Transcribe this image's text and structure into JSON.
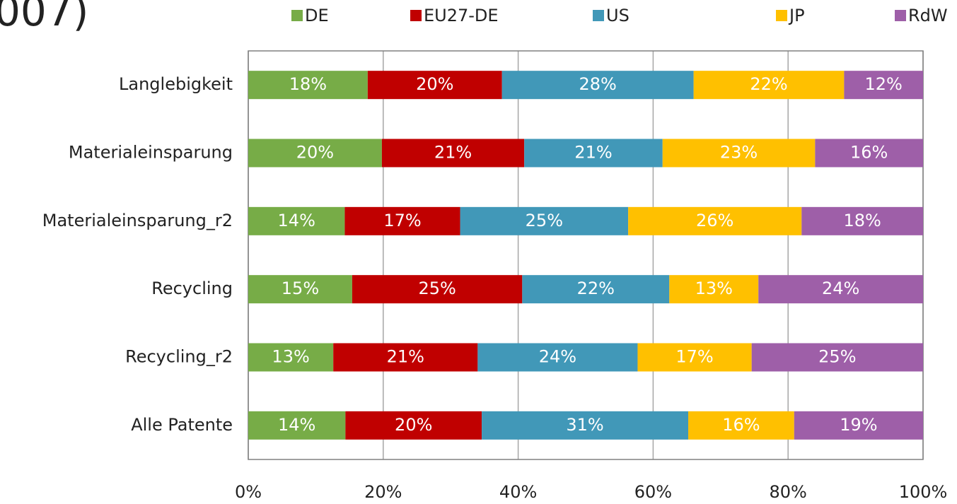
{
  "chart_data": {
    "type": "stacked_bar_horizontal",
    "title": "007)",
    "categories": [
      "Langlebigkeit",
      "Materialeinsparung",
      "Materialeinsparung_r2",
      "Recycling",
      "Recycling_r2",
      "Alle Patente"
    ],
    "series": [
      {
        "name": "DE",
        "color": "#77ac47",
        "values": [
          17.7,
          19.8,
          14.3,
          15.4,
          12.6,
          14.4
        ],
        "value_labels": [
          "18%",
          "20%",
          "14%",
          "15%",
          "13%",
          "14%"
        ]
      },
      {
        "name": "EU27-DE",
        "color": "#c00000",
        "values": [
          19.9,
          21.1,
          17.1,
          25.2,
          21.4,
          20.2
        ],
        "value_labels": [
          "20%",
          "21%",
          "17%",
          "25%",
          "21%",
          "20%"
        ]
      },
      {
        "name": "US",
        "color": "#4198b8",
        "values": [
          28.4,
          20.5,
          24.9,
          21.8,
          23.7,
          30.6
        ],
        "value_labels": [
          "28%",
          "21%",
          "25%",
          "22%",
          "24%",
          "31%"
        ]
      },
      {
        "name": "JP",
        "color": "#ffc000",
        "values": [
          22.3,
          22.6,
          25.7,
          13.2,
          16.9,
          15.7
        ],
        "value_labels": [
          "22%",
          "23%",
          "26%",
          "13%",
          "17%",
          "16%"
        ]
      },
      {
        "name": "RdW",
        "color": "#9e5fa8",
        "values": [
          11.7,
          16.0,
          18.0,
          24.4,
          25.4,
          19.1
        ],
        "value_labels": [
          "12%",
          "16%",
          "18%",
          "24%",
          "25%",
          "19%"
        ]
      }
    ],
    "xlim": [
      0,
      100
    ],
    "xticks": [
      {
        "value": 0,
        "label": "0%"
      },
      {
        "value": 20,
        "label": "20%"
      },
      {
        "value": 40,
        "label": "40%"
      },
      {
        "value": 60,
        "label": "60%"
      },
      {
        "value": 80,
        "label": "80%"
      },
      {
        "value": 100,
        "label": "100%"
      }
    ],
    "grid": true,
    "legend": "top"
  }
}
